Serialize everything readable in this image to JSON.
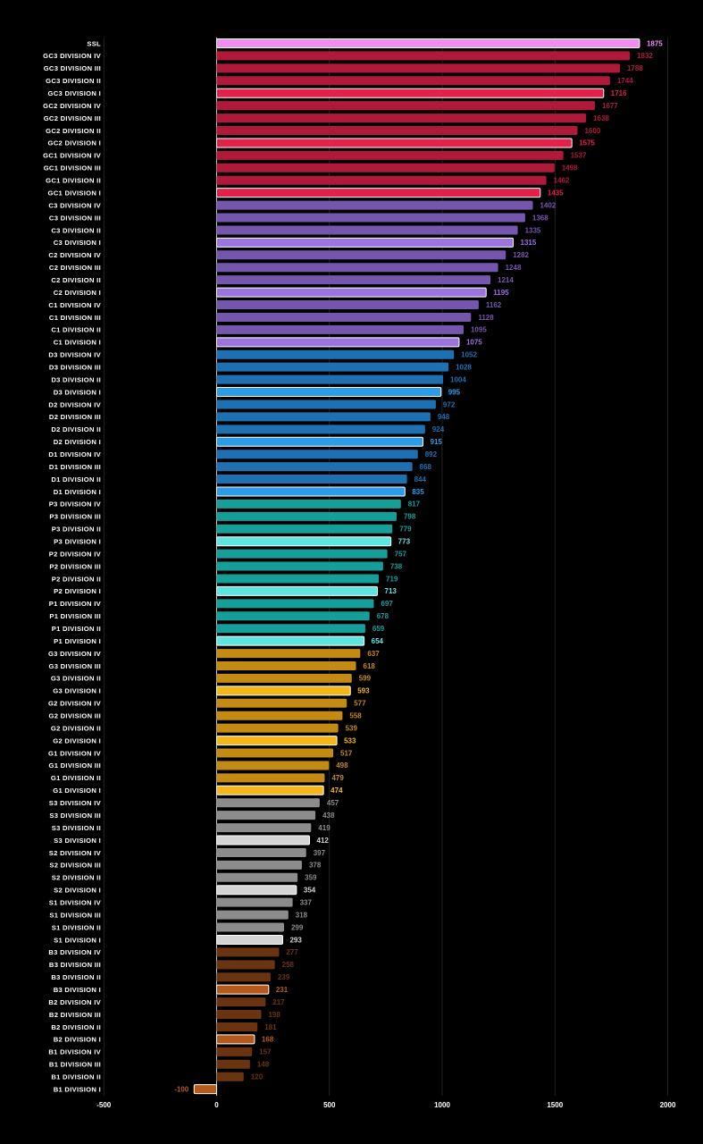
{
  "chart_data": {
    "type": "bar",
    "orientation": "horizontal",
    "title": "",
    "xlabel": "",
    "ylabel": "",
    "xlim": [
      -500,
      2000
    ],
    "x_ticks": [
      -500,
      0,
      500,
      1000,
      1500,
      2000
    ],
    "grid": "vertical",
    "legend": "none",
    "background": "#000000",
    "colors": {
      "ssl": "#ee8ef0",
      "gc": "#b0193a",
      "gc_div1": "#e3204a",
      "c": "#7556ad",
      "c_div1": "#9b74e0",
      "d": "#1d70b2",
      "d_div1": "#2a9ce8",
      "p": "#159f98",
      "p_div1": "#5de6e0",
      "g": "#c48b14",
      "g_div1": "#f5b718",
      "s": "#8c8c8c",
      "s_div1": "#d4d4d4",
      "b": "#6b3410",
      "b_div1": "#b55a1c"
    },
    "categories": [
      "SSL",
      "GC3 DIVISION IV",
      "GC3 DIVISION III",
      "GC3 DIVISION II",
      "GC3 DIVISION I",
      "GC2 DIVISION IV",
      "GC2 DIVISION III",
      "GC2 DIVISION II",
      "GC2 DIVISION I",
      "GC1 DIVISION IV",
      "GC1 DIVISION III",
      "GC1 DIVISION II",
      "GC1 DIVISION I",
      "C3 DIVISION IV",
      "C3 DIVISION III",
      "C3 DIVISION II",
      "C3 DIVISION I",
      "C2 DIVISION IV",
      "C2 DIVISION III",
      "C2 DIVISION II",
      "C2 DIVISION I",
      "C1 DIVISION IV",
      "C1 DIVISION III",
      "C1 DIVISION II",
      "C1 DIVISION I",
      "D3 DIVISION IV",
      "D3 DIVISION III",
      "D3 DIVISION II",
      "D3 DIVISION I",
      "D2 DIVISION IV",
      "D2 DIVISION III",
      "D2 DIVISION II",
      "D2 DIVISION I",
      "D1 DIVISION IV",
      "D1 DIVISION III",
      "D1 DIVISION II",
      "D1 DIVISION I",
      "P3 DIVISION IV",
      "P3 DIVISION III",
      "P3 DIVISION II",
      "P3 DIVISION I",
      "P2 DIVISION IV",
      "P2 DIVISION III",
      "P2 DIVISION II",
      "P2 DIVISION I",
      "P1 DIVISION IV",
      "P1 DIVISION III",
      "P1 DIVISION II",
      "P1 DIVISION I",
      "G3 DIVISION IV",
      "G3 DIVISION III",
      "G3 DIVISION II",
      "G3 DIVISION I",
      "G2 DIVISION IV",
      "G2 DIVISION III",
      "G2 DIVISION II",
      "G2 DIVISION I",
      "G1 DIVISION IV",
      "G1 DIVISION III",
      "G1 DIVISION II",
      "G1 DIVISION I",
      "S3 DIVISION IV",
      "S3 DIVISION III",
      "S3 DIVISION II",
      "S3 DIVISION I",
      "S2 DIVISION IV",
      "S2 DIVISION III",
      "S2 DIVISION II",
      "S2 DIVISION I",
      "S1 DIVISION IV",
      "S1 DIVISION III",
      "S1 DIVISION II",
      "S1 DIVISION I",
      "B3 DIVISION IV",
      "B3 DIVISION III",
      "B3 DIVISION II",
      "B3 DIVISION I",
      "B2 DIVISION IV",
      "B2 DIVISION III",
      "B2 DIVISION II",
      "B2 DIVISION I",
      "B1 DIVISION IV",
      "B1 DIVISION III",
      "B1 DIVISION II",
      "B1 DIVISION I"
    ],
    "values": [
      1875,
      1832,
      1788,
      1744,
      1716,
      1677,
      1638,
      1600,
      1575,
      1537,
      1498,
      1462,
      1435,
      1402,
      1368,
      1335,
      1315,
      1282,
      1248,
      1214,
      1195,
      1162,
      1128,
      1095,
      1075,
      1052,
      1028,
      1004,
      995,
      972,
      948,
      924,
      915,
      892,
      868,
      844,
      835,
      817,
      798,
      779,
      773,
      757,
      738,
      719,
      713,
      697,
      678,
      659,
      654,
      637,
      618,
      599,
      593,
      577,
      558,
      539,
      533,
      517,
      498,
      479,
      474,
      457,
      438,
      419,
      412,
      397,
      378,
      359,
      354,
      337,
      318,
      299,
      293,
      277,
      258,
      239,
      231,
      217,
      198,
      181,
      168,
      157,
      148,
      120,
      -100
    ]
  }
}
